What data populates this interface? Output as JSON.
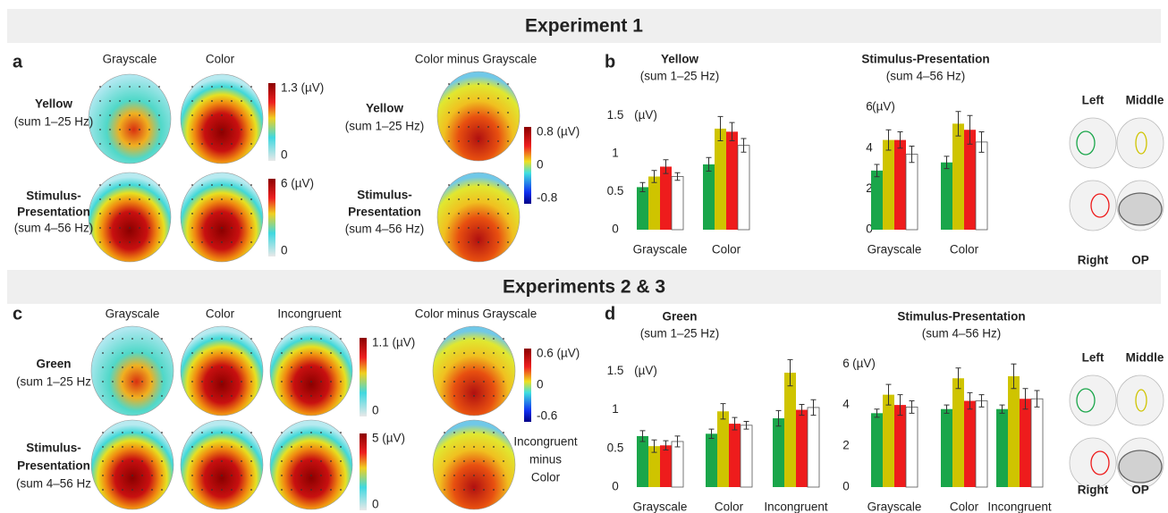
{
  "figure": {
    "sections": [
      "Experiment 1",
      "Experiments 2 & 3"
    ],
    "panel_labels": [
      "a",
      "b",
      "c",
      "d"
    ],
    "exp1": {
      "columns": [
        "Grayscale",
        "Color",
        "Color minus Grayscale"
      ],
      "rows": [
        [
          "Yellow",
          "(sum 1–25 Hz)"
        ],
        [
          "Stimulus-",
          "Presentation",
          "(sum 4–56 Hz)"
        ]
      ],
      "colorbars": [
        [
          "1.3 (µV)",
          "0"
        ],
        [
          "6 (µV)",
          "0"
        ],
        [
          "0.8 (µV)",
          "0",
          "-0.8"
        ]
      ]
    },
    "exp23": {
      "columns": [
        "Grayscale",
        "Color",
        "Incongruent",
        "Color minus Grayscale"
      ],
      "rows": [
        [
          "Green",
          "(sum 1–25 Hz"
        ],
        [
          "Stimulus-",
          "Presentation",
          "(sum 4–56 Hz"
        ]
      ],
      "colorbars": [
        [
          "1.1 (µV)",
          "0"
        ],
        [
          "5 (µV)",
          "0"
        ],
        [
          "0.6 (µV)",
          "0",
          "-0.6"
        ]
      ],
      "diff2": [
        "Incongruent",
        "minus",
        "Color"
      ]
    }
  },
  "chart_data": [
    {
      "type": "bar",
      "title": "Yellow",
      "subtitle": "(sum 1–25 Hz)",
      "ylabel": "(µV)",
      "categories": [
        "Grayscale",
        "Color"
      ],
      "ylim": [
        0,
        1.6
      ],
      "yticks": [
        0,
        0.5,
        1,
        1.5
      ],
      "series": [
        {
          "name": "Left",
          "color": "#1aa64a",
          "values": [
            0.56,
            0.86
          ],
          "errors": [
            0.06,
            0.09
          ]
        },
        {
          "name": "Middle",
          "color": "#cfc400",
          "values": [
            0.7,
            1.33
          ],
          "errors": [
            0.08,
            0.16
          ]
        },
        {
          "name": "Right",
          "color": "#ee1c1c",
          "values": [
            0.83,
            1.29
          ],
          "errors": [
            0.09,
            0.12
          ]
        },
        {
          "name": "OP",
          "color": "#ffffff",
          "values": [
            0.7,
            1.11
          ],
          "errors": [
            0.05,
            0.09
          ]
        }
      ]
    },
    {
      "type": "bar",
      "title": "Stimulus-Presentation",
      "subtitle": "(sum 4–56 Hz)",
      "ylabel": "(µV)",
      "categories": [
        "Grayscale",
        "Color"
      ],
      "ylim": [
        0,
        6.4
      ],
      "yticks": [
        0,
        2,
        4,
        6
      ],
      "series": [
        {
          "name": "Left",
          "color": "#1aa64a",
          "values": [
            2.9,
            3.3
          ],
          "errors": [
            0.3,
            0.3
          ]
        },
        {
          "name": "Middle",
          "color": "#cfc400",
          "values": [
            4.4,
            5.2
          ],
          "errors": [
            0.5,
            0.6
          ]
        },
        {
          "name": "Right",
          "color": "#ee1c1c",
          "values": [
            4.4,
            4.9
          ],
          "errors": [
            0.4,
            0.7
          ]
        },
        {
          "name": "OP",
          "color": "#ffffff",
          "values": [
            3.7,
            4.3
          ],
          "errors": [
            0.4,
            0.5
          ]
        }
      ]
    },
    {
      "type": "bar",
      "title": "Green",
      "subtitle": "(sum 1–25 Hz)",
      "ylabel": "(µV)",
      "categories": [
        "Grayscale",
        "Color",
        "Incongruent"
      ],
      "ylim": [
        0,
        1.7
      ],
      "yticks": [
        0,
        0.5,
        1,
        1.5
      ],
      "series": [
        {
          "name": "Left",
          "color": "#1aa64a",
          "values": [
            0.66,
            0.69,
            0.89
          ],
          "errors": [
            0.07,
            0.06,
            0.1
          ]
        },
        {
          "name": "Middle",
          "color": "#cfc400",
          "values": [
            0.53,
            0.98,
            1.48
          ],
          "errors": [
            0.08,
            0.1,
            0.17
          ]
        },
        {
          "name": "Right",
          "color": "#ee1c1c",
          "values": [
            0.54,
            0.82,
            1.0
          ],
          "errors": [
            0.06,
            0.08,
            0.07
          ]
        },
        {
          "name": "OP",
          "color": "#ffffff",
          "values": [
            0.59,
            0.8,
            1.03
          ],
          "errors": [
            0.07,
            0.05,
            0.1
          ]
        }
      ]
    },
    {
      "type": "bar",
      "title": "Stimulus-Presentation",
      "subtitle": "(sum 4–56 Hz)",
      "ylabel": "(µV)",
      "categories": [
        "Grayscale",
        "Color",
        "Incongruent"
      ],
      "ylim": [
        0,
        6.4
      ],
      "yticks": [
        0,
        2,
        4,
        6
      ],
      "series": [
        {
          "name": "Left",
          "color": "#1aa64a",
          "values": [
            3.6,
            3.8,
            3.8
          ],
          "errors": [
            0.2,
            0.2,
            0.2
          ]
        },
        {
          "name": "Middle",
          "color": "#cfc400",
          "values": [
            4.5,
            5.3,
            5.4
          ],
          "errors": [
            0.5,
            0.5,
            0.6
          ]
        },
        {
          "name": "Right",
          "color": "#ee1c1c",
          "values": [
            4.0,
            4.2,
            4.3
          ],
          "errors": [
            0.5,
            0.4,
            0.5
          ]
        },
        {
          "name": "OP",
          "color": "#ffffff",
          "values": [
            3.9,
            4.2,
            4.3
          ],
          "errors": [
            0.3,
            0.3,
            0.4
          ]
        }
      ]
    }
  ]
}
